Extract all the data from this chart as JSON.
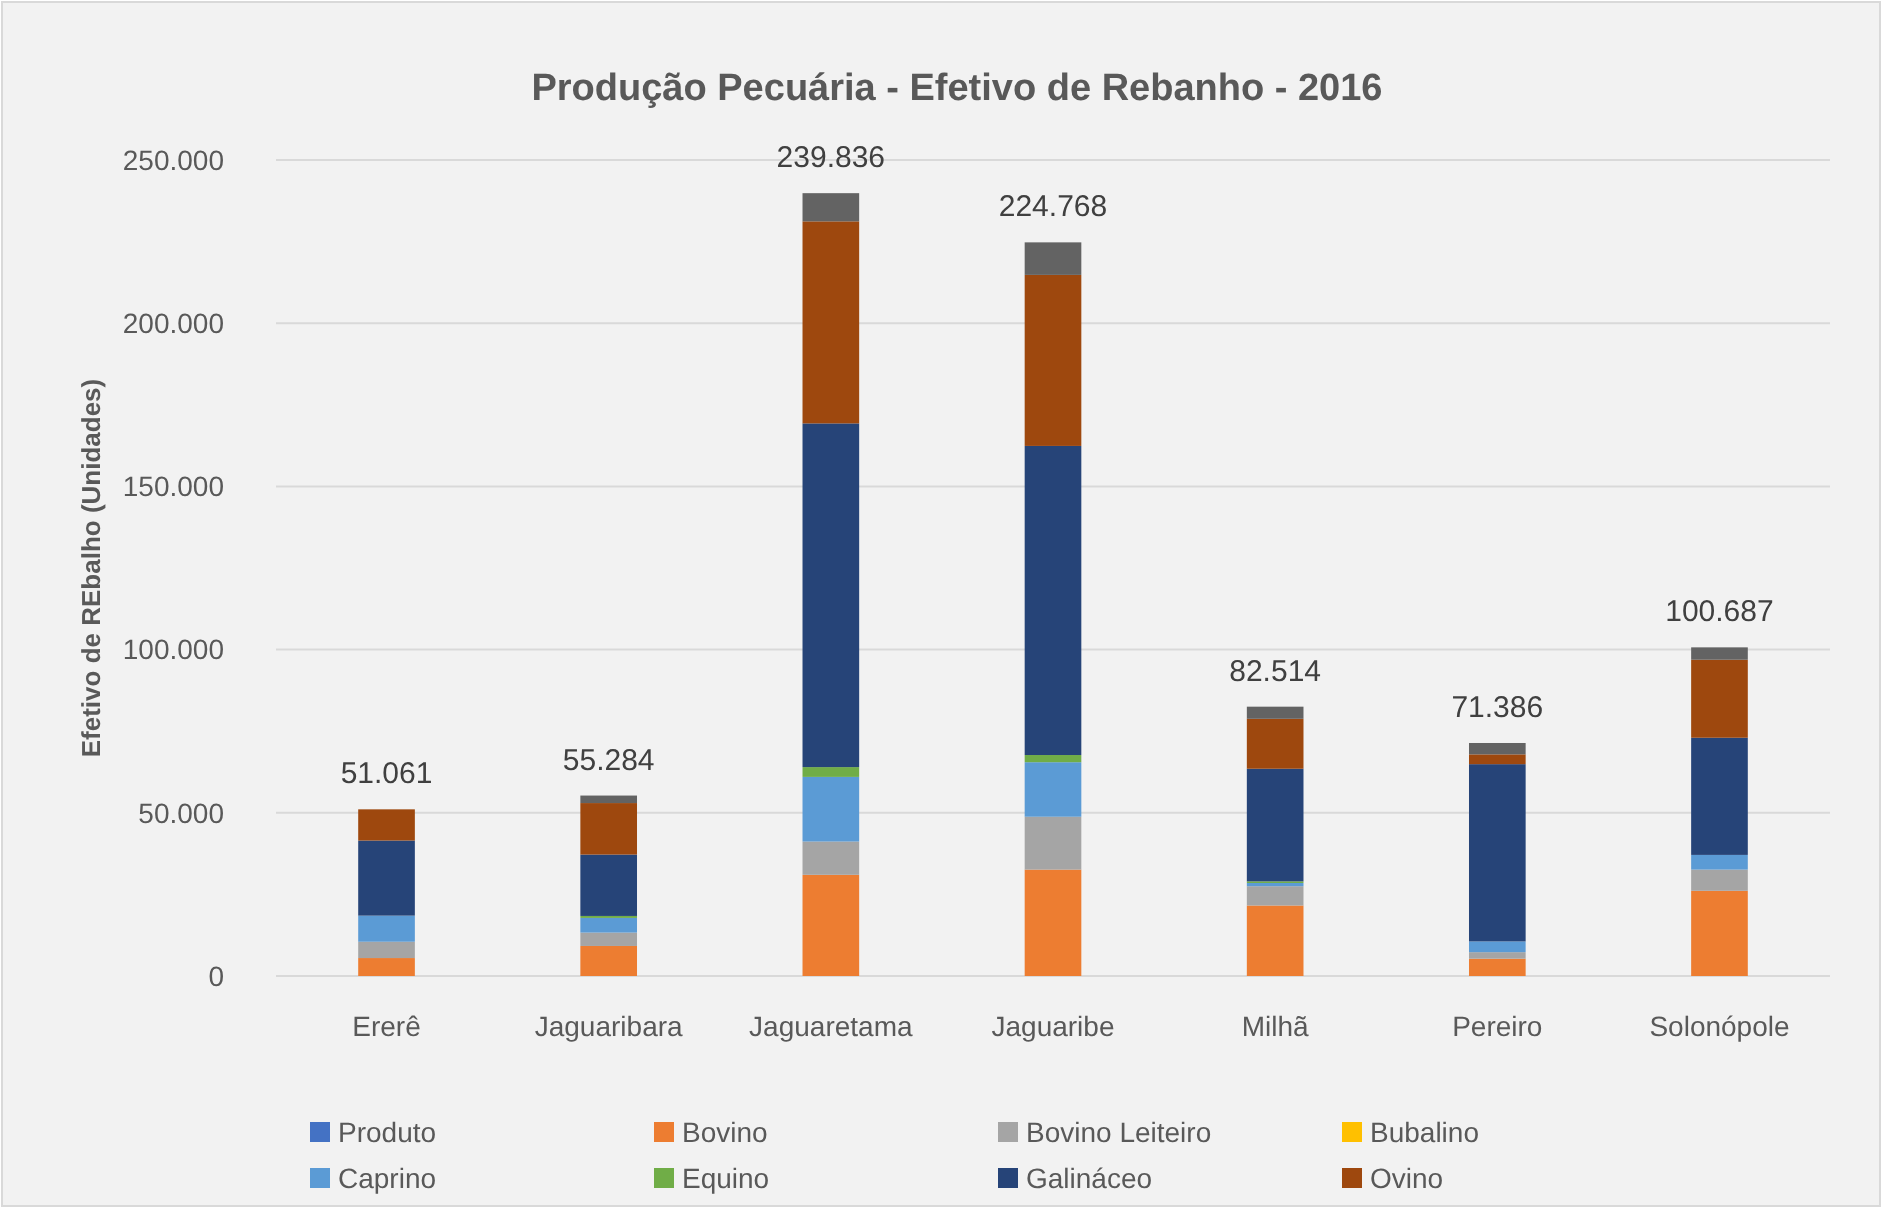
{
  "chart_data": {
    "type": "bar",
    "stacked": true,
    "title": "Produção Pecuária - Efetivo de Rebanho - 2016",
    "ylabel": "Efetivo de REbalho (Unidades)",
    "categories": [
      "Ererê",
      "Jaguaribara",
      "Jaguaretama",
      "Jaguaribe",
      "Milhã",
      "Pereiro",
      "Solonópole"
    ],
    "series": [
      {
        "name": "Produto",
        "color": "#4472c4",
        "values": [
          0,
          0,
          0,
          0,
          0,
          0,
          0
        ]
      },
      {
        "name": "Bovino",
        "color": "#ed7d31",
        "values": [
          5500,
          9200,
          31000,
          32600,
          21600,
          5300,
          26100
        ]
      },
      {
        "name": "Bovino Leiteiro",
        "color": "#a5a5a5",
        "values": [
          5000,
          4100,
          10200,
          16200,
          5900,
          2000,
          6500
        ]
      },
      {
        "name": "Bubalino",
        "color": "#ffc000",
        "values": [
          0,
          0,
          0,
          0,
          0,
          0,
          0
        ]
      },
      {
        "name": "Caprino",
        "color": "#5b9bd5",
        "values": [
          8000,
          4500,
          19800,
          16700,
          1000,
          3300,
          4500
        ]
      },
      {
        "name": "Equino",
        "color": "#70ad47",
        "values": [
          0,
          600,
          3000,
          2200,
          500,
          0,
          0
        ]
      },
      {
        "name": "Galináceo",
        "color": "#264478",
        "values": [
          23000,
          18800,
          105300,
          94700,
          34500,
          54300,
          35900
        ]
      },
      {
        "name": "Ovino",
        "color": "#9e480e",
        "values": [
          9561,
          15784,
          61900,
          52400,
          15300,
          3000,
          23900
        ]
      },
      {
        "color": "#636363",
        "values": [
          0,
          2300,
          8636,
          9968,
          3714,
          3486,
          3787
        ]
      }
    ],
    "totals": [
      "51.061",
      "55.284",
      "239.836",
      "224.768",
      "82.514",
      "71.386",
      "100.687"
    ],
    "ylim": [
      0,
      250000
    ],
    "yticks": [
      0,
      {
        "value": 50000,
        "label": "50.000"
      },
      {
        "value": 100000,
        "label": "100.000"
      },
      {
        "value": 150000,
        "label": "150.000"
      },
      {
        "value": 200000,
        "label": "200.000"
      },
      {
        "value": 250000,
        "label": "250.000"
      }
    ],
    "grid": "y",
    "legend": "bottom"
  }
}
